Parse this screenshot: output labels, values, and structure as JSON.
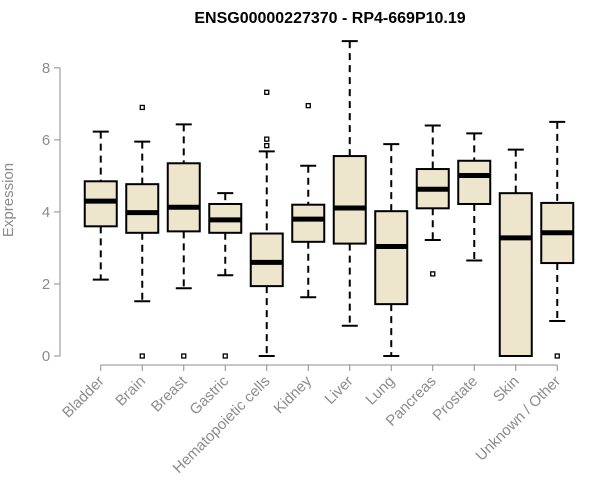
{
  "chart_data": {
    "type": "boxplot",
    "title": "ENSG00000227370 - RP4-669P10.19",
    "ylabel": "Expression",
    "xlabel": "",
    "ylim": [
      0,
      8.8
    ],
    "yticks": [
      0,
      2,
      4,
      6,
      8
    ],
    "colors": {
      "box_fill": "#ede6cd",
      "stroke": "#000000",
      "axis": "#8c8c8c"
    },
    "categories": [
      "Bladder",
      "Brain",
      "Breast",
      "Gastric",
      "Hematopoietic cells",
      "Kidney",
      "Liver",
      "Lung",
      "Pancreas",
      "Prostate",
      "Skin",
      "Unknown / Other"
    ],
    "series": [
      {
        "name": "Bladder",
        "whisker_low": 2.12,
        "q1": 3.6,
        "median": 4.3,
        "q3": 4.85,
        "whisker_high": 6.23,
        "outliers": []
      },
      {
        "name": "Brain",
        "whisker_low": 1.52,
        "q1": 3.42,
        "median": 3.98,
        "q3": 4.77,
        "whisker_high": 5.95,
        "outliers": [
          6.9,
          0.0
        ]
      },
      {
        "name": "Breast",
        "whisker_low": 1.88,
        "q1": 3.46,
        "median": 4.13,
        "q3": 5.35,
        "whisker_high": 6.43,
        "outliers": [
          0.0
        ]
      },
      {
        "name": "Gastric",
        "whisker_low": 2.24,
        "q1": 3.42,
        "median": 3.78,
        "q3": 4.22,
        "whisker_high": 4.52,
        "outliers": [
          0.0
        ]
      },
      {
        "name": "Hematopoietic cells",
        "whisker_low": 0.0,
        "q1": 1.94,
        "median": 2.6,
        "q3": 3.4,
        "whisker_high": 5.68,
        "outliers": [
          7.32,
          6.02,
          5.84
        ]
      },
      {
        "name": "Kidney",
        "whisker_low": 1.63,
        "q1": 3.17,
        "median": 3.8,
        "q3": 4.2,
        "whisker_high": 5.28,
        "outliers": [
          6.95
        ]
      },
      {
        "name": "Liver",
        "whisker_low": 0.84,
        "q1": 3.12,
        "median": 4.11,
        "q3": 5.55,
        "whisker_high": 8.74,
        "outliers": []
      },
      {
        "name": "Lung",
        "whisker_low": 0.0,
        "q1": 1.44,
        "median": 3.04,
        "q3": 4.02,
        "whisker_high": 5.88,
        "outliers": []
      },
      {
        "name": "Pancreas",
        "whisker_low": 3.22,
        "q1": 4.1,
        "median": 4.63,
        "q3": 5.19,
        "whisker_high": 6.4,
        "outliers": [
          2.28
        ]
      },
      {
        "name": "Prostate",
        "whisker_low": 2.65,
        "q1": 4.22,
        "median": 5.01,
        "q3": 5.42,
        "whisker_high": 6.18,
        "outliers": []
      },
      {
        "name": "Skin",
        "whisker_low": 0.0,
        "q1": 0.0,
        "median": 3.28,
        "q3": 4.52,
        "whisker_high": 5.73,
        "outliers": []
      },
      {
        "name": "Unknown / Other",
        "whisker_low": 0.97,
        "q1": 2.58,
        "median": 3.42,
        "q3": 4.25,
        "whisker_high": 6.5,
        "outliers": [
          0.0
        ]
      }
    ]
  }
}
